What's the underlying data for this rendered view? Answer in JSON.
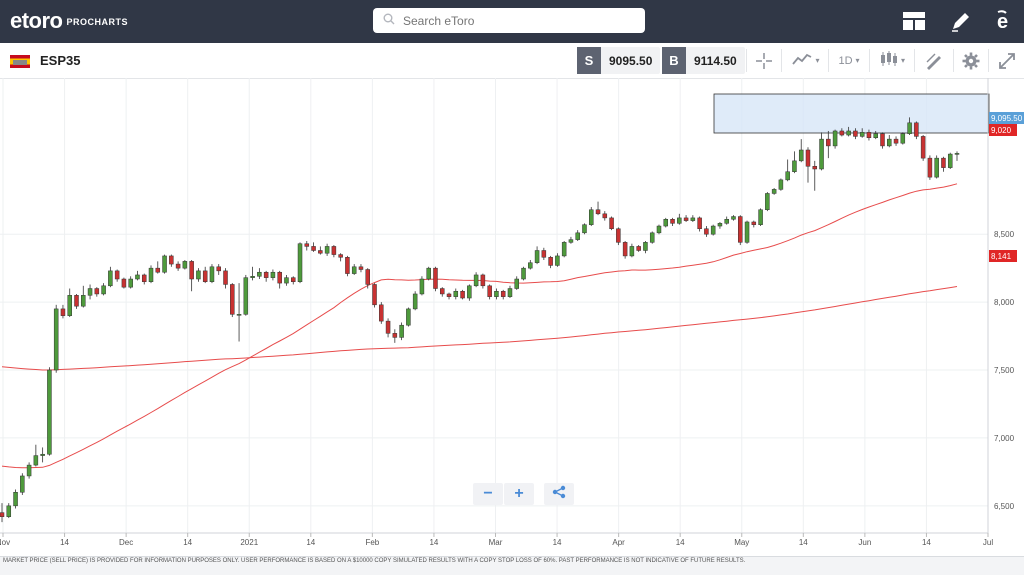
{
  "app": {
    "brand": "etoro",
    "product": "PROCHARTS",
    "search_placeholder": "Search eToro"
  },
  "toolbar": {
    "instrument": "ESP35",
    "sell_label": "S",
    "sell_price": "9095.50",
    "buy_label": "B",
    "buy_price": "9114.50",
    "timeframe": "1D"
  },
  "chart_data": {
    "type": "candlestick",
    "x_labels": [
      "Nov",
      "14",
      "Dec",
      "14",
      "2021",
      "14",
      "Feb",
      "14",
      "Mar",
      "14",
      "Apr",
      "14",
      "May",
      "14",
      "Jun",
      "14",
      "Jul"
    ],
    "y_ticks": [
      "6,500",
      "7,000",
      "7,500",
      "8,000",
      "8,500"
    ],
    "ylim": [
      6300,
      9650
    ],
    "price_labels": {
      "current": "9,095.50",
      "ma_short": "9,020",
      "ma_long": "8,141"
    },
    "colors": {
      "up": "#4e9a3c",
      "down": "#c83232",
      "ma": "#e74c4c",
      "channel": "#d7e6f8",
      "current": "#5aa0d8"
    },
    "candles": [
      [
        6450,
        6420,
        6520,
        6380
      ],
      [
        6420,
        6500,
        6520,
        6410
      ],
      [
        6500,
        6600,
        6620,
        6480
      ],
      [
        6600,
        6720,
        6740,
        6580
      ],
      [
        6720,
        6800,
        6820,
        6700
      ],
      [
        6800,
        6870,
        6950,
        6790
      ],
      [
        6870,
        6880,
        6930,
        6820
      ],
      [
        6880,
        7500,
        7520,
        6870
      ],
      [
        7500,
        7950,
        7980,
        7480
      ],
      [
        7950,
        7900,
        7980,
        7880
      ],
      [
        7900,
        8050,
        8100,
        7890
      ],
      [
        8050,
        7970,
        8060,
        7950
      ],
      [
        7970,
        8050,
        8120,
        7960
      ],
      [
        8050,
        8100,
        8130,
        8020
      ],
      [
        8100,
        8060,
        8110,
        8040
      ],
      [
        8060,
        8120,
        8140,
        8050
      ],
      [
        8120,
        8230,
        8260,
        8110
      ],
      [
        8230,
        8170,
        8240,
        8150
      ],
      [
        8170,
        8110,
        8180,
        8100
      ],
      [
        8110,
        8170,
        8190,
        8100
      ],
      [
        8170,
        8200,
        8230,
        8160
      ],
      [
        8200,
        8150,
        8210,
        8130
      ],
      [
        8150,
        8250,
        8270,
        8140
      ],
      [
        8250,
        8220,
        8300,
        8210
      ],
      [
        8220,
        8340,
        8350,
        8210
      ],
      [
        8340,
        8280,
        8350,
        8260
      ],
      [
        8280,
        8250,
        8300,
        8230
      ],
      [
        8250,
        8300,
        8310,
        8240
      ],
      [
        8300,
        8170,
        8310,
        8080
      ],
      [
        8170,
        8230,
        8250,
        8150
      ],
      [
        8230,
        8150,
        8260,
        8140
      ],
      [
        8150,
        8260,
        8280,
        8140
      ],
      [
        8260,
        8230,
        8280,
        8200
      ],
      [
        8230,
        8130,
        8250,
        8100
      ],
      [
        8130,
        7910,
        8140,
        7890
      ],
      [
        7910,
        7910,
        8140,
        7710
      ],
      [
        7910,
        8180,
        8200,
        7900
      ],
      [
        8180,
        8190,
        8260,
        8160
      ],
      [
        8190,
        8220,
        8250,
        8170
      ],
      [
        8220,
        8180,
        8230,
        8150
      ],
      [
        8180,
        8220,
        8240,
        8160
      ],
      [
        8220,
        8140,
        8230,
        8100
      ],
      [
        8140,
        8180,
        8200,
        8120
      ],
      [
        8180,
        8150,
        8190,
        8130
      ],
      [
        8150,
        8430,
        8440,
        8140
      ],
      [
        8430,
        8410,
        8450,
        8380
      ],
      [
        8410,
        8380,
        8440,
        8370
      ],
      [
        8380,
        8360,
        8410,
        8350
      ],
      [
        8360,
        8410,
        8430,
        8340
      ],
      [
        8410,
        8350,
        8420,
        8330
      ],
      [
        8350,
        8330,
        8360,
        8300
      ],
      [
        8330,
        8210,
        8340,
        8190
      ],
      [
        8210,
        8260,
        8280,
        8200
      ],
      [
        8260,
        8240,
        8280,
        8220
      ],
      [
        8240,
        8130,
        8250,
        8100
      ],
      [
        8130,
        7980,
        8140,
        7960
      ],
      [
        7980,
        7860,
        8000,
        7840
      ],
      [
        7860,
        7770,
        7880,
        7740
      ],
      [
        7770,
        7740,
        7800,
        7700
      ],
      [
        7740,
        7830,
        7850,
        7720
      ],
      [
        7830,
        7950,
        7960,
        7820
      ],
      [
        7950,
        8060,
        8080,
        7940
      ],
      [
        8060,
        8170,
        8190,
        8050
      ],
      [
        8170,
        8250,
        8260,
        8160
      ],
      [
        8250,
        8100,
        8260,
        8080
      ],
      [
        8100,
        8060,
        8110,
        8040
      ],
      [
        8060,
        8040,
        8070,
        8020
      ],
      [
        8040,
        8080,
        8100,
        8020
      ],
      [
        8080,
        8030,
        8090,
        8020
      ],
      [
        8030,
        8120,
        8130,
        8010
      ],
      [
        8120,
        8200,
        8220,
        8110
      ],
      [
        8200,
        8120,
        8210,
        8100
      ],
      [
        8120,
        8040,
        8130,
        8020
      ],
      [
        8040,
        8080,
        8100,
        8020
      ],
      [
        8080,
        8040,
        8090,
        8020
      ],
      [
        8040,
        8100,
        8120,
        8030
      ],
      [
        8100,
        8170,
        8190,
        8090
      ],
      [
        8170,
        8250,
        8260,
        8160
      ],
      [
        8250,
        8290,
        8310,
        8240
      ],
      [
        8290,
        8380,
        8410,
        8280
      ],
      [
        8380,
        8330,
        8400,
        8310
      ],
      [
        8330,
        8270,
        8340,
        8250
      ],
      [
        8270,
        8340,
        8360,
        8260
      ],
      [
        8340,
        8440,
        8450,
        8330
      ],
      [
        8440,
        8460,
        8480,
        8430
      ],
      [
        8460,
        8510,
        8530,
        8450
      ],
      [
        8510,
        8570,
        8580,
        8500
      ],
      [
        8570,
        8680,
        8700,
        8560
      ],
      [
        8680,
        8650,
        8740,
        8640
      ],
      [
        8650,
        8620,
        8670,
        8600
      ],
      [
        8620,
        8540,
        8630,
        8530
      ],
      [
        8540,
        8440,
        8550,
        8420
      ],
      [
        8440,
        8340,
        8450,
        8320
      ],
      [
        8340,
        8410,
        8430,
        8330
      ],
      [
        8410,
        8380,
        8420,
        8370
      ],
      [
        8380,
        8440,
        8450,
        8360
      ],
      [
        8440,
        8510,
        8520,
        8430
      ],
      [
        8510,
        8560,
        8570,
        8500
      ],
      [
        8560,
        8610,
        8620,
        8550
      ],
      [
        8610,
        8580,
        8620,
        8560
      ],
      [
        8580,
        8620,
        8650,
        8570
      ],
      [
        8620,
        8600,
        8640,
        8590
      ],
      [
        8600,
        8620,
        8640,
        8590
      ],
      [
        8620,
        8540,
        8630,
        8520
      ],
      [
        8540,
        8500,
        8560,
        8480
      ],
      [
        8500,
        8560,
        8570,
        8490
      ],
      [
        8560,
        8580,
        8590,
        8540
      ],
      [
        8580,
        8610,
        8630,
        8570
      ],
      [
        8610,
        8630,
        8640,
        8600
      ],
      [
        8630,
        8440,
        8640,
        8420
      ],
      [
        8440,
        8590,
        8600,
        8430
      ],
      [
        8590,
        8570,
        8600,
        8550
      ],
      [
        8570,
        8680,
        8690,
        8560
      ],
      [
        8680,
        8800,
        8810,
        8670
      ],
      [
        8800,
        8830,
        8840,
        8790
      ],
      [
        8830,
        8900,
        8910,
        8820
      ],
      [
        8900,
        8960,
        9050,
        8890
      ],
      [
        8960,
        9040,
        9110,
        8950
      ],
      [
        9040,
        9120,
        9200,
        9030
      ],
      [
        9120,
        9000,
        9140,
        8880
      ],
      [
        9000,
        8980,
        9040,
        8820
      ],
      [
        8980,
        9200,
        9250,
        8970
      ],
      [
        9200,
        9150,
        9260,
        9060
      ],
      [
        9150,
        9260,
        9270,
        9130
      ],
      [
        9260,
        9230,
        9280,
        9220
      ],
      [
        9230,
        9260,
        9290,
        9220
      ],
      [
        9260,
        9220,
        9280,
        9200
      ],
      [
        9220,
        9250,
        9280,
        9210
      ],
      [
        9250,
        9210,
        9270,
        9190
      ],
      [
        9210,
        9240,
        9260,
        9200
      ],
      [
        9240,
        9150,
        9250,
        9130
      ],
      [
        9150,
        9200,
        9230,
        9140
      ],
      [
        9200,
        9170,
        9220,
        9150
      ],
      [
        9170,
        9240,
        9250,
        9160
      ],
      [
        9240,
        9320,
        9360,
        9230
      ],
      [
        9320,
        9220,
        9330,
        9200
      ],
      [
        9220,
        9060,
        9230,
        9040
      ],
      [
        9060,
        8920,
        9080,
        8900
      ],
      [
        8920,
        9060,
        9080,
        8910
      ],
      [
        9060,
        8990,
        9070,
        8960
      ],
      [
        8990,
        9090,
        9100,
        8980
      ],
      [
        9090,
        9095,
        9110,
        9040
      ]
    ]
  }
}
